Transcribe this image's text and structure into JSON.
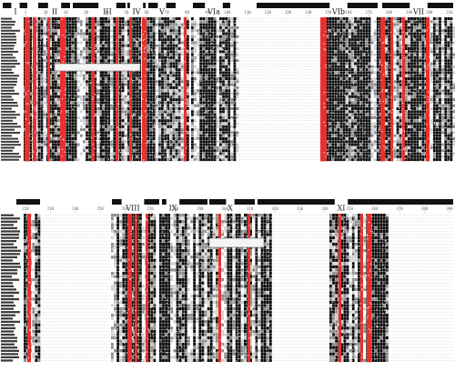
{
  "figure": {
    "type": "multiple-sequence-alignment",
    "colors": {
      "identical": "#e8312f",
      "conserved": "#0a0a0a",
      "similar": "#8c8c8c",
      "light": "#d0d0d0",
      "domain_bar": "#111111"
    },
    "panels": [
      {
        "domains": [
          "I",
          "II",
          "III",
          "IV",
          "V",
          "VIa",
          "VIb",
          "VII"
        ],
        "ruler": [
          "1",
          "10",
          "20",
          "30",
          "40",
          "50",
          "60",
          "70",
          "80",
          "90",
          "100",
          "110",
          "120",
          "130",
          "140",
          "150",
          "160",
          "170",
          "180",
          "190",
          "200",
          "210"
        ]
      },
      {
        "domains": [
          "VIII",
          "IX",
          "X",
          "XI"
        ],
        "ruler": [
          "220",
          "230",
          "240",
          "250",
          "260",
          "270",
          "280",
          "290",
          "300",
          "310",
          "320",
          "330",
          "340",
          "350",
          "360",
          "370",
          "380",
          "390"
        ]
      }
    ]
  }
}
